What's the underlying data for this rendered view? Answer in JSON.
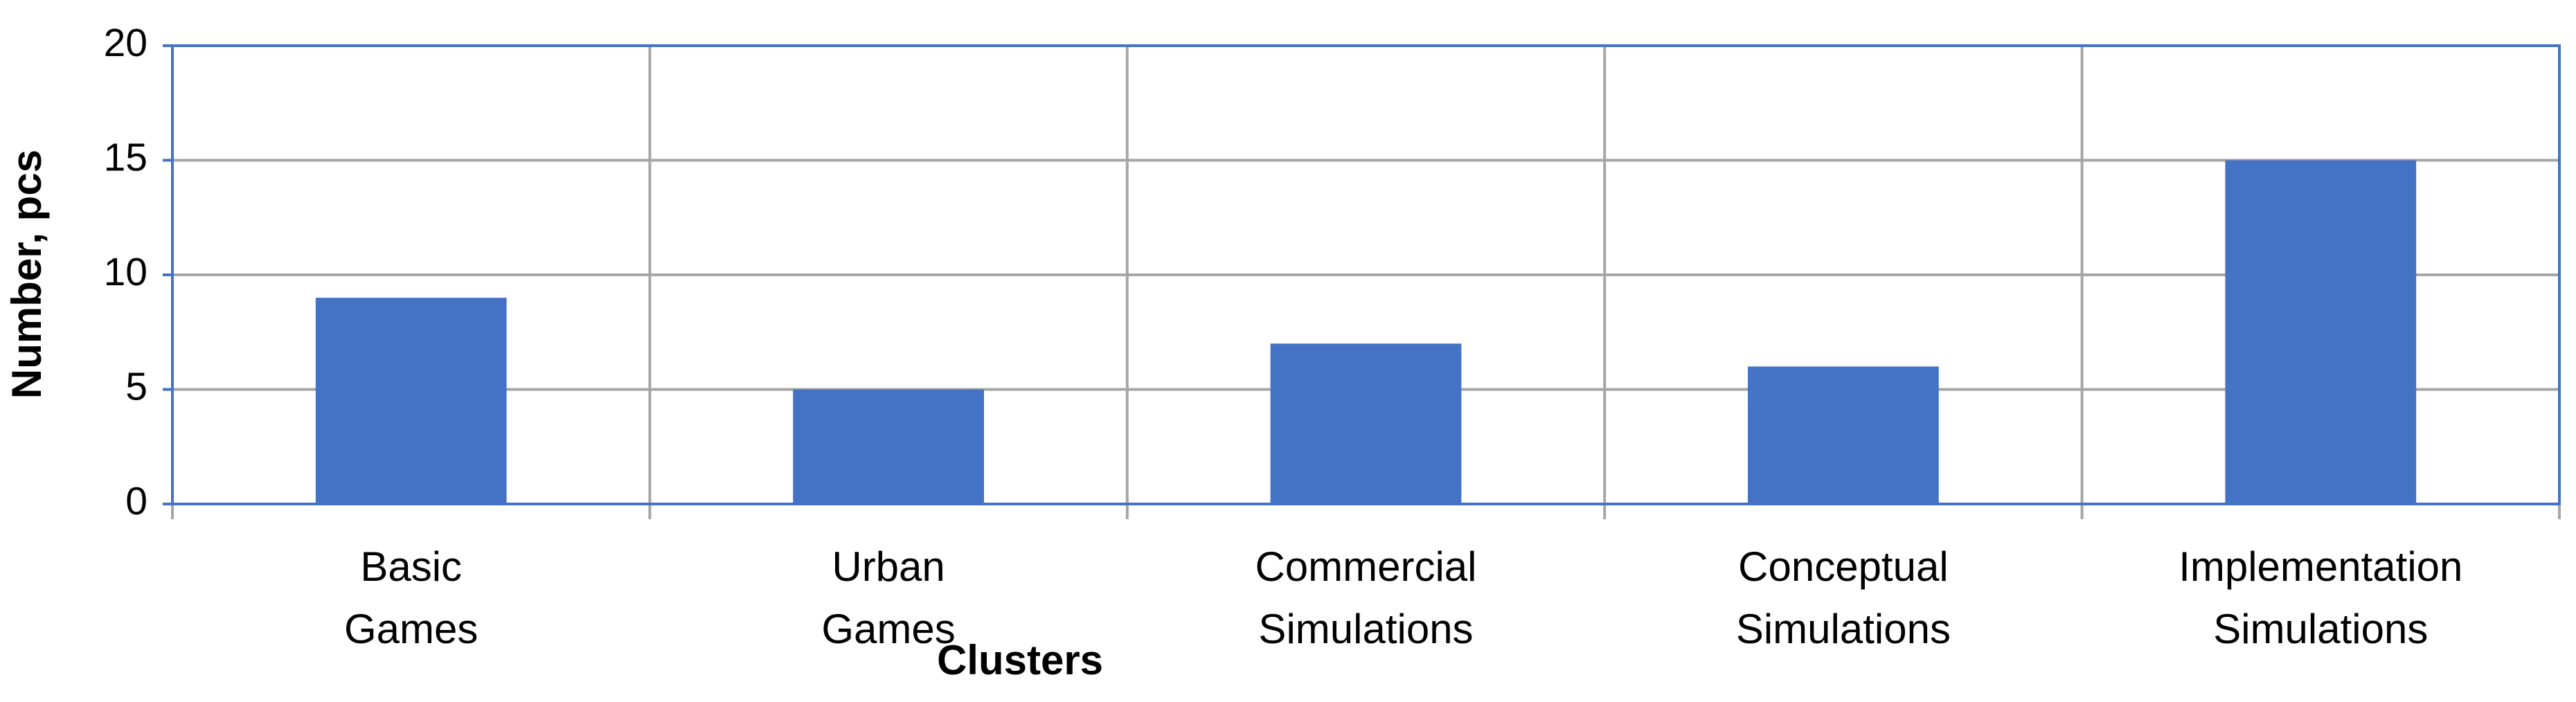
{
  "chart_data": {
    "type": "bar",
    "x_label": "Clusters",
    "y_label": "Number, pcs",
    "categories": [
      "Basic Games",
      "Urban Games",
      "Commercial Simulations",
      "Conceptual Simulations",
      "Implementation Simulations"
    ],
    "values": [
      9,
      5,
      7,
      6,
      15
    ],
    "color": "#4472c4",
    "ylim": [
      0,
      20
    ],
    "yticks": [
      0,
      5,
      10,
      15,
      20
    ],
    "grid": true
  }
}
